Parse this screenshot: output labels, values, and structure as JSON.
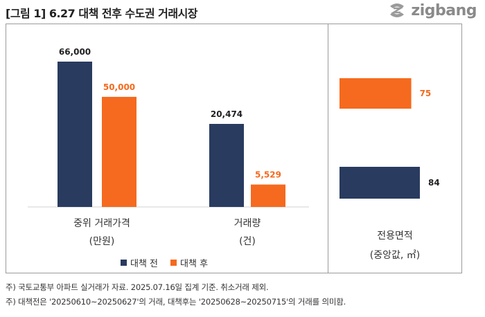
{
  "title": "[그림 1] 6.27 대책 전후 수도권 거래시장",
  "brand": {
    "name": "zigbang",
    "icon": "zigbang-logo-icon"
  },
  "colors": {
    "before": "#293B5F",
    "after": "#F56A1E",
    "axis": "#d0d0d0"
  },
  "chart_data": [
    {
      "type": "bar",
      "categories": [
        {
          "line1": "중위 거래가격",
          "line2": "(만원)"
        },
        {
          "line1": "거래량",
          "line2": "(건)"
        }
      ],
      "series": [
        {
          "name": "대책 전",
          "values": [
            66000,
            20474
          ],
          "labels": [
            "66,000",
            "20,474"
          ]
        },
        {
          "name": "대책 후",
          "values": [
            50000,
            5529
          ],
          "labels": [
            "50,000",
            "5,529"
          ]
        }
      ],
      "ylim": [
        0,
        70000
      ],
      "legend": "bottom"
    },
    {
      "type": "bar",
      "orientation": "horizontal",
      "category": {
        "line1": "전용면적",
        "line2": "(중앙값, ㎡)"
      },
      "series": [
        {
          "name": "대책 후",
          "value": 75,
          "label": "75"
        },
        {
          "name": "대책 전",
          "value": 84,
          "label": "84"
        }
      ],
      "xlim": [
        0,
        100
      ]
    }
  ],
  "notes": [
    "주) 국토교통부 아파트 실거래가 자료. 2025.07.16일 집계 기준. 취소거래 제외.",
    "주) 대책전은 '20250610~20250627'의 거래, 대책후는 '20250628~20250715'의 거래를 의미함."
  ]
}
